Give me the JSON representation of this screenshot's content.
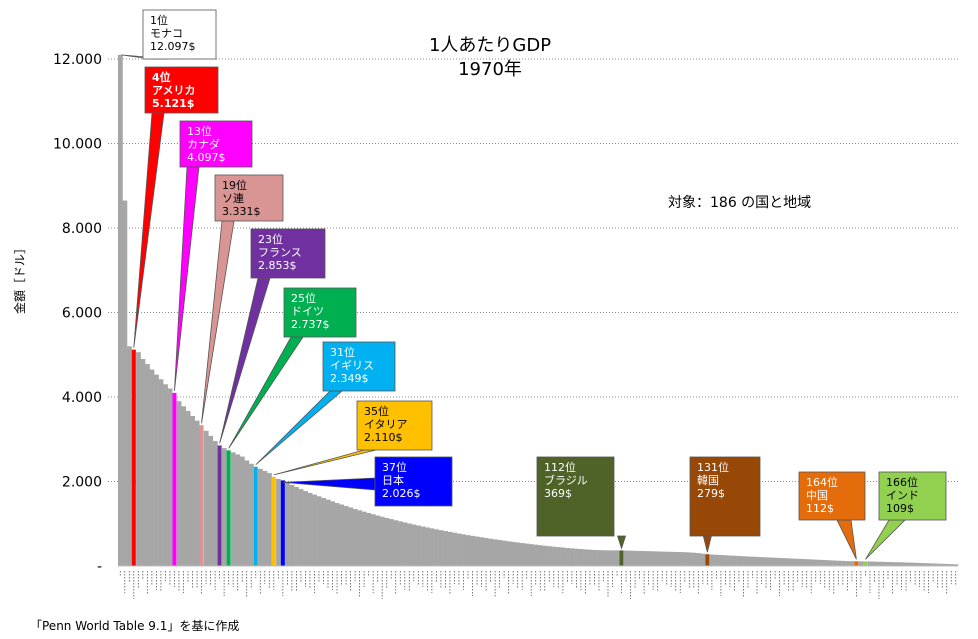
{
  "chart_data": {
    "type": "bar",
    "title": "1人あたりGDP",
    "subtitle": "1970年",
    "ylabel": "金額［ドル］",
    "note": "対象：186 の国と地域",
    "source": "「Penn World Table 9.1」を基に作成",
    "ylim": [
      0,
      12000
    ],
    "yticks": [
      {
        "value": 0,
        "label": "-"
      },
      {
        "value": 2000,
        "label": "2.000"
      },
      {
        "value": 4000,
        "label": "4.000"
      },
      {
        "value": 6000,
        "label": "6.000"
      },
      {
        "value": 8000,
        "label": "8.000"
      },
      {
        "value": 10000,
        "label": "10.000"
      },
      {
        "value": 12000,
        "label": "12.000"
      }
    ],
    "grid": true,
    "bar_count": 186,
    "default_bar_color": "#a6a6a6",
    "highlighted": [
      {
        "rank": 1,
        "country": "モナコ",
        "rank_label": "1位",
        "value_label": "12.097$",
        "value": 12097,
        "color": "#a6a6a6",
        "box_fill": "#ffffff",
        "text_color": "#000000"
      },
      {
        "rank": 4,
        "country": "アメリカ",
        "rank_label": "4位",
        "value_label": "5.121$",
        "value": 5121,
        "color": "#ff0000",
        "box_fill": "#ff0000",
        "text_color": "#ffffff"
      },
      {
        "rank": 13,
        "country": "カナダ",
        "rank_label": "13位",
        "value_label": "4.097$",
        "value": 4097,
        "color": "#ff00ff",
        "box_fill": "#ff00ff",
        "text_color": "#ffffff"
      },
      {
        "rank": 19,
        "country": "ソ連",
        "rank_label": "19位",
        "value_label": "3.331$",
        "value": 3331,
        "color": "#d99594",
        "box_fill": "#d99594",
        "text_color": "#000000"
      },
      {
        "rank": 23,
        "country": "フランス",
        "rank_label": "23位",
        "value_label": "2.853$",
        "value": 2853,
        "color": "#7030a0",
        "box_fill": "#7030a0",
        "text_color": "#ffffff"
      },
      {
        "rank": 25,
        "country": "ドイツ",
        "rank_label": "25位",
        "value_label": "2.737$",
        "value": 2737,
        "color": "#00b050",
        "box_fill": "#00b050",
        "text_color": "#ffffff"
      },
      {
        "rank": 31,
        "country": "イギリス",
        "rank_label": "31位",
        "value_label": "2.349$",
        "value": 2349,
        "color": "#00b0f0",
        "box_fill": "#00b0f0",
        "text_color": "#ffffff"
      },
      {
        "rank": 35,
        "country": "イタリア",
        "rank_label": "35位",
        "value_label": "2.110$",
        "value": 2110,
        "color": "#ffc000",
        "box_fill": "#ffc000",
        "text_color": "#000000"
      },
      {
        "rank": 37,
        "country": "日本",
        "rank_label": "37位",
        "value_label": "2.026$",
        "value": 2026,
        "color": "#0000ff",
        "box_fill": "#0000ff",
        "text_color": "#ffffff"
      },
      {
        "rank": 112,
        "country": "ブラジル",
        "rank_label": "112位",
        "value_label": "369$",
        "value": 369,
        "color": "#4f6228",
        "box_fill": "#4f6228",
        "text_color": "#ffffff"
      },
      {
        "rank": 131,
        "country": "韓国",
        "rank_label": "131位",
        "value_label": "279$",
        "value": 279,
        "color": "#974706",
        "box_fill": "#974706",
        "text_color": "#ffffff"
      },
      {
        "rank": 164,
        "country": "中国",
        "rank_label": "164位",
        "value_label": "112$",
        "value": 112,
        "color": "#e46c0a",
        "box_fill": "#e46c0a",
        "text_color": "#ffffff"
      },
      {
        "rank": 166,
        "country": "インド",
        "rank_label": "166位",
        "value_label": "109$",
        "value": 109,
        "color": "#92d050",
        "box_fill": "#92d050",
        "text_color": "#000000"
      }
    ],
    "values": [
      12097,
      8650,
      5200,
      5121,
      5060,
      4900,
      4780,
      4650,
      4530,
      4420,
      4300,
      4200,
      4097,
      3900,
      3780,
      3670,
      3550,
      3440,
      3331,
      3200,
      3080,
      2960,
      2853,
      2790,
      2737,
      2690,
      2640,
      2590,
      2500,
      2420,
      2349,
      2300,
      2250,
      2200,
      2110,
      2060,
      2026,
      1970,
      1920,
      1870,
      1820,
      1775,
      1730,
      1690,
      1650,
      1610,
      1570,
      1530,
      1490,
      1455,
      1420,
      1385,
      1350,
      1318,
      1286,
      1255,
      1225,
      1195,
      1166,
      1138,
      1110,
      1083,
      1057,
      1031,
      1006,
      982,
      958,
      935,
      912,
      890,
      868,
      847,
      827,
      807,
      787,
      768,
      749,
      731,
      713,
      696,
      679,
      662,
      646,
      630,
      615,
      600,
      585,
      571,
      557,
      543,
      530,
      517,
      504,
      492,
      480,
      469,
      458,
      447,
      437,
      427,
      418,
      409,
      401,
      393,
      386,
      380,
      376,
      373,
      371,
      370,
      369.5,
      369,
      366,
      363,
      360,
      357,
      354,
      351,
      348,
      345,
      342,
      339,
      336,
      333,
      330,
      327,
      322,
      315,
      305,
      292,
      279,
      272,
      266,
      260,
      254,
      248,
      242,
      236,
      231,
      226,
      221,
      216,
      211,
      206,
      201,
      196,
      191,
      186,
      181,
      176,
      171,
      166,
      161,
      156,
      151,
      146,
      141,
      136,
      131,
      126,
      121,
      116,
      114,
      112,
      110,
      109,
      107,
      104,
      101,
      98,
      95,
      92,
      89,
      86,
      83,
      80,
      76,
      72,
      68,
      64,
      60,
      56,
      52,
      48,
      44,
      40
    ]
  }
}
